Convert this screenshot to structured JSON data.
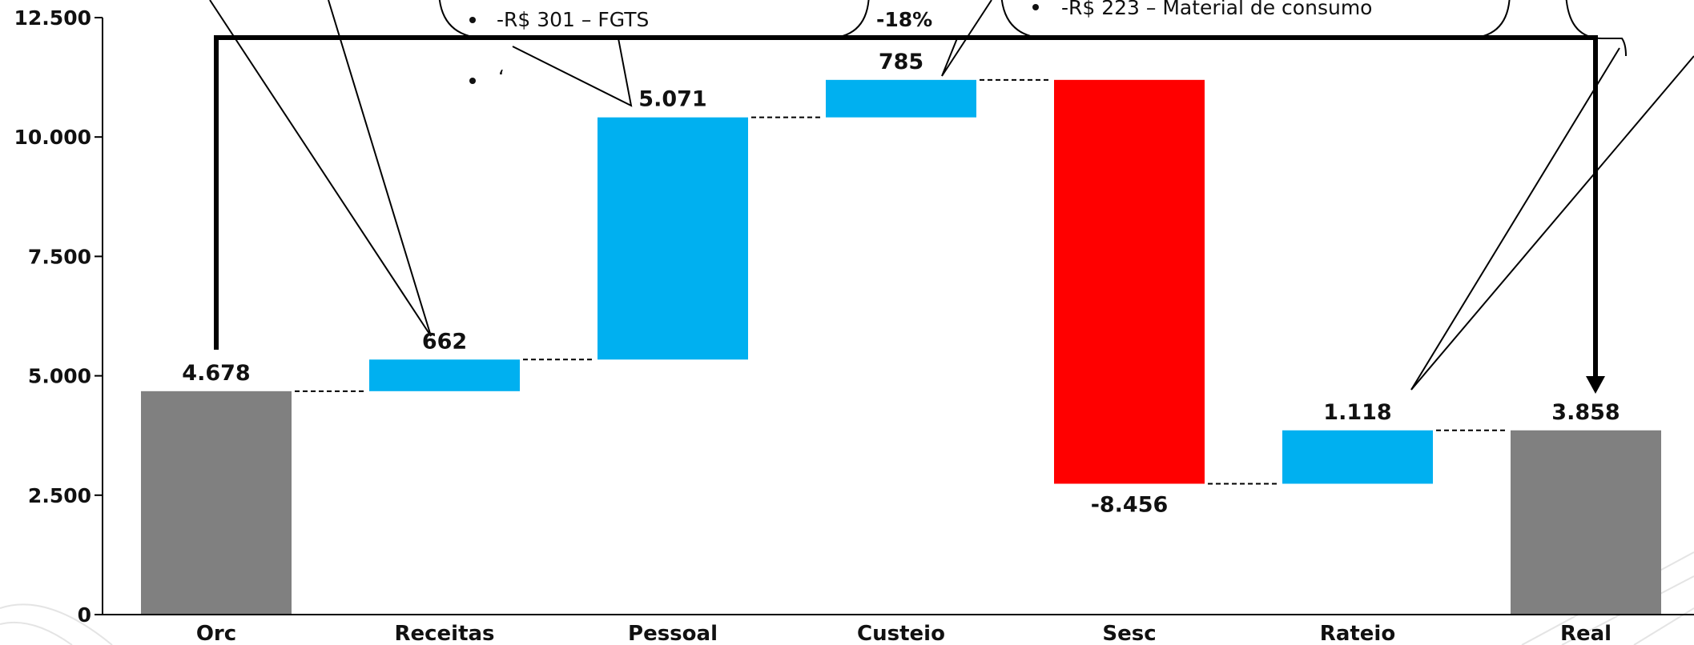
{
  "chart_data": {
    "type": "bar",
    "subtype": "waterfall",
    "categories": [
      "Orc",
      "Receitas",
      "Pessoal",
      "Custeio",
      "Sesc",
      "Rateio",
      "Real"
    ],
    "values": [
      4678,
      662,
      5071,
      785,
      -8456,
      1118,
      3858
    ],
    "value_labels": [
      "4.678",
      "662",
      "5.071",
      "785",
      "-8.456",
      "1.118",
      "3.858"
    ],
    "kinds": [
      "total",
      "delta",
      "delta",
      "delta",
      "delta",
      "delta",
      "total"
    ],
    "ylim": [
      0,
      12500
    ],
    "yticks": [
      0,
      2500,
      5000,
      7500,
      10000,
      12500
    ],
    "ytick_labels": [
      "0",
      "2.500",
      "5.000",
      "7.500",
      "10.000",
      "12.500"
    ],
    "grid": false,
    "colors": {
      "total": "#808080",
      "increase": "#00b0f0",
      "decrease": "#ff0000",
      "axis": "#000000"
    }
  },
  "annotations": {
    "pessoal_callout_line": "-R$ 301 – FGTS",
    "pessoal_callout_stray": "‘",
    "custeio_percent": "-18%",
    "custeio_callout_line": "-R$ 223 – Material de consumo"
  }
}
